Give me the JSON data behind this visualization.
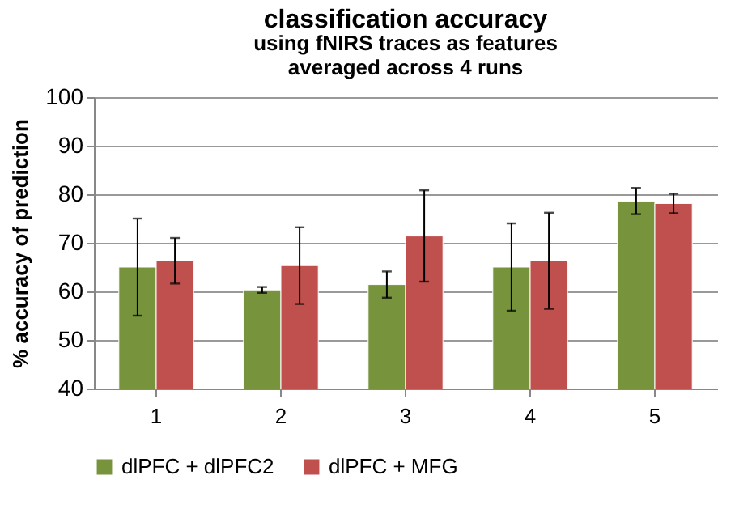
{
  "chart_data": {
    "type": "bar",
    "title": "classification accuracy",
    "subtitle": "using fNIRS traces as features\naveraged across 4 runs",
    "ylabel": "% accuracy of prediction",
    "categories": [
      "1",
      "2",
      "3",
      "4",
      "5"
    ],
    "series": [
      {
        "name": "dlPFC + dlPFC2",
        "color": "#77933c",
        "values": [
          65.0,
          60.3,
          61.4,
          65.0,
          78.6
        ],
        "errors": [
          10,
          0.6,
          2.7,
          9,
          2.7
        ]
      },
      {
        "name": "dlPFC + MFG",
        "color": "#c0504d",
        "values": [
          66.3,
          65.3,
          71.4,
          66.3,
          78.1
        ],
        "errors": [
          4.7,
          7.9,
          9.4,
          9.9,
          2
        ]
      }
    ],
    "ylim": [
      40,
      100
    ],
    "yticks": [
      40,
      50,
      60,
      70,
      80,
      90,
      100
    ],
    "grid": "y",
    "legend": "bottom"
  }
}
